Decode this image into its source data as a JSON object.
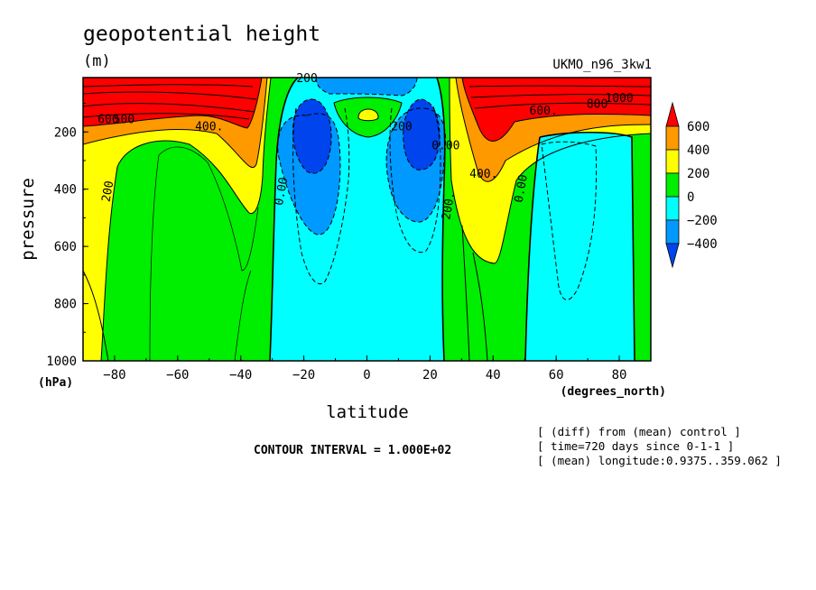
{
  "chart_data": {
    "type": "contour",
    "title": "geopotential height",
    "units": "(m)",
    "model_label": "UKMO_n96_3kw1",
    "xlabel": "latitude",
    "x_units": "(degrees_north)",
    "ylabel": "pressure",
    "y_units": "(hPa)",
    "xlim": [
      -90,
      90
    ],
    "ylim": [
      1000,
      10
    ],
    "y_reversed": true,
    "x_ticks": [
      -80,
      -60,
      -40,
      -20,
      0,
      20,
      40,
      60,
      80
    ],
    "y_ticks": [
      200,
      400,
      600,
      800,
      1000
    ],
    "contour_interval_text": "CONTOUR INTERVAL = 1.000E+02",
    "contour_interval": 100,
    "colorbar": {
      "levels": [
        600,
        400,
        200,
        0,
        -200,
        -400
      ],
      "colors": [
        "#ff0000",
        "#ff9900",
        "#ffff00",
        "#00ee00",
        "#00ffff",
        "#0099ff",
        "#0044ee"
      ]
    },
    "contour_labels": [
      {
        "text": "200",
        "lat": -19,
        "p": 25
      },
      {
        "text": "500",
        "lat": -77,
        "p": 170
      },
      {
        "text": "600",
        "lat": -82,
        "p": 170
      },
      {
        "text": "400.",
        "lat": -50,
        "p": 195
      },
      {
        "text": "200",
        "lat": -81,
        "p": 410
      },
      {
        "text": "0.00",
        "lat": -26,
        "p": 410
      },
      {
        "text": "200",
        "lat": 11,
        "p": 195
      },
      {
        "text": "0.00",
        "lat": 25,
        "p": 260
      },
      {
        "text": "200.",
        "lat": 27,
        "p": 460
      },
      {
        "text": "400.",
        "lat": 37,
        "p": 360
      },
      {
        "text": "600.",
        "lat": 56,
        "p": 140
      },
      {
        "text": "800",
        "lat": 73,
        "p": 115
      },
      {
        "text": "1000",
        "lat": 80,
        "p": 95
      },
      {
        "text": "0.00",
        "lat": 50,
        "p": 400
      }
    ],
    "annotations": [
      "[ (diff) from (mean) control ]",
      "[ time=720 days since 0-1-1 ]",
      "[ (mean) longitude:0.9375..359.062 ]"
    ]
  }
}
